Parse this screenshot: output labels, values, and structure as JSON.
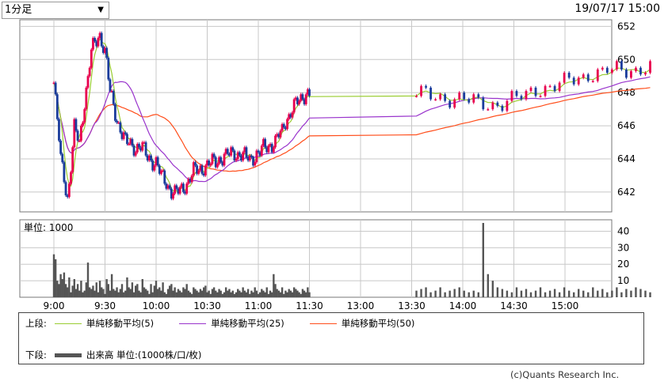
{
  "period_select": {
    "value": "1分足"
  },
  "datetime": "19/07/17 15:00",
  "price_axis_ticks": [
    "652",
    "650",
    "648",
    "646",
    "644",
    "642"
  ],
  "volume_axis_ticks": [
    "40",
    "30",
    "20",
    "10"
  ],
  "volume_unit_label": "単位: 1000",
  "time_ticks": [
    "9:00",
    "9:30",
    "10:00",
    "10:30",
    "11:00",
    "11:30",
    "13:00",
    "13:30",
    "14:00",
    "14:30",
    "15:00"
  ],
  "legend": {
    "upper_label": "上段:",
    "lower_label": "下段:",
    "ma5": "単純移動平均(5)",
    "ma25": "単純移動平均(25)",
    "ma50": "単純移動平均(50)",
    "volume": "出来高 単位:(1000株/口/枚)"
  },
  "copyright": "(c)Quants Research Inc.",
  "colors": {
    "up": "#e8004e",
    "down": "#1a3c9c",
    "ma5": "#9acd32",
    "ma25": "#9933cc",
    "ma50": "#ff4d1a",
    "volume": "#555555"
  },
  "chart_data": [
    {
      "type": "candlestick",
      "ylim": [
        640.8,
        652.4
      ],
      "xlim": [
        0,
        330
      ],
      "x_ticks": [
        0,
        30,
        60,
        90,
        120,
        150,
        180,
        210,
        240,
        270,
        300
      ],
      "anchors": [
        [
          0,
          648.6
        ],
        [
          2,
          646.3
        ],
        [
          4,
          644.0
        ],
        [
          6,
          643.0
        ],
        [
          8,
          641.6
        ],
        [
          10,
          643.5
        ],
        [
          12,
          645.8
        ],
        [
          15,
          645.0
        ],
        [
          18,
          647.5
        ],
        [
          20,
          648.8
        ],
        [
          22,
          650.5
        ],
        [
          25,
          651.2
        ],
        [
          27,
          651.5
        ],
        [
          30,
          650.5
        ],
        [
          33,
          648.0
        ],
        [
          36,
          646.8
        ],
        [
          39,
          645.8
        ],
        [
          42,
          645.0
        ],
        [
          45,
          644.9
        ],
        [
          48,
          644.7
        ],
        [
          51,
          644.7
        ],
        [
          54,
          644.3
        ],
        [
          57,
          644.0
        ],
        [
          60,
          643.7
        ],
        [
          63,
          643.0
        ],
        [
          66,
          642.6
        ],
        [
          69,
          642.0
        ],
        [
          72,
          641.9
        ],
        [
          75,
          642.2
        ],
        [
          78,
          642.5
        ],
        [
          82,
          643.2
        ],
        [
          86,
          643.4
        ],
        [
          90,
          643.6
        ],
        [
          95,
          643.9
        ],
        [
          100,
          644.1
        ],
        [
          105,
          644.4
        ],
        [
          110,
          644.2
        ],
        [
          115,
          644.0
        ],
        [
          120,
          644.3
        ],
        [
          125,
          644.8
        ],
        [
          130,
          645.0
        ],
        [
          134,
          645.7
        ],
        [
          136,
          646.3
        ],
        [
          140,
          647.0
        ],
        [
          144,
          647.5
        ],
        [
          148,
          648.0
        ],
        [
          152,
          647.9
        ],
        [
          156,
          647.8
        ],
        [
          160,
          647.6
        ],
        [
          164,
          647.4
        ],
        [
          168,
          647.3
        ],
        [
          172,
          647.6
        ],
        [
          176,
          648.2
        ],
        [
          180,
          648.4
        ],
        [
          184,
          648.8
        ],
        [
          188,
          649.2
        ],
        [
          192,
          649.3
        ],
        [
          196,
          649.4
        ],
        [
          200,
          649.6
        ]
      ],
      "volume": [
        26,
        23,
        10,
        8,
        14,
        11,
        15,
        8,
        6,
        12,
        3,
        7,
        11,
        5,
        8,
        4,
        10,
        3,
        4,
        9,
        21,
        6,
        5,
        7,
        4,
        9,
        3,
        10,
        6,
        5,
        2,
        11,
        8,
        4,
        14,
        5,
        4,
        6,
        3,
        5,
        8,
        3,
        4,
        12,
        6,
        5,
        9,
        3,
        7,
        8,
        4,
        3,
        11,
        6,
        5,
        4,
        2,
        8,
        3,
        7,
        10,
        5,
        6,
        4,
        9,
        3,
        2,
        5,
        7,
        8,
        4,
        6,
        3,
        5,
        4,
        3,
        6,
        5,
        8,
        4,
        3,
        2,
        6,
        5,
        4,
        3,
        5,
        4,
        6,
        7,
        3,
        4,
        2,
        5,
        6,
        4,
        3,
        5,
        4,
        2,
        3,
        6,
        4,
        5,
        3,
        4,
        2,
        3,
        5,
        4,
        3,
        6,
        4,
        3,
        5,
        2,
        4,
        3,
        6,
        4,
        2,
        3,
        5,
        4,
        3,
        6,
        2,
        4,
        3,
        14,
        8,
        5,
        4,
        3,
        6,
        2,
        4,
        3,
        5,
        4,
        3,
        6,
        5,
        4,
        3,
        2,
        5,
        4,
        3,
        6,
        3,
        4,
        5,
        6,
        3,
        4,
        6,
        3,
        4,
        5,
        6,
        4,
        3,
        4,
        3,
        45,
        14,
        10,
        6,
        5,
        4,
        3,
        6,
        4,
        5,
        3,
        4,
        6,
        3,
        4,
        5,
        3,
        6,
        4,
        3,
        5,
        4,
        3,
        6,
        4,
        5,
        3,
        4,
        6,
        3,
        5,
        4,
        6,
        5,
        4,
        3,
        5,
        4,
        6,
        5,
        3,
        6,
        4,
        5,
        3,
        16,
        7,
        6,
        5,
        4,
        3,
        36,
        8,
        6,
        5,
        18,
        13,
        5
      ]
    },
    {
      "type": "bar",
      "ylim": [
        0,
        45
      ],
      "ylabel": "単位: 1000"
    }
  ]
}
